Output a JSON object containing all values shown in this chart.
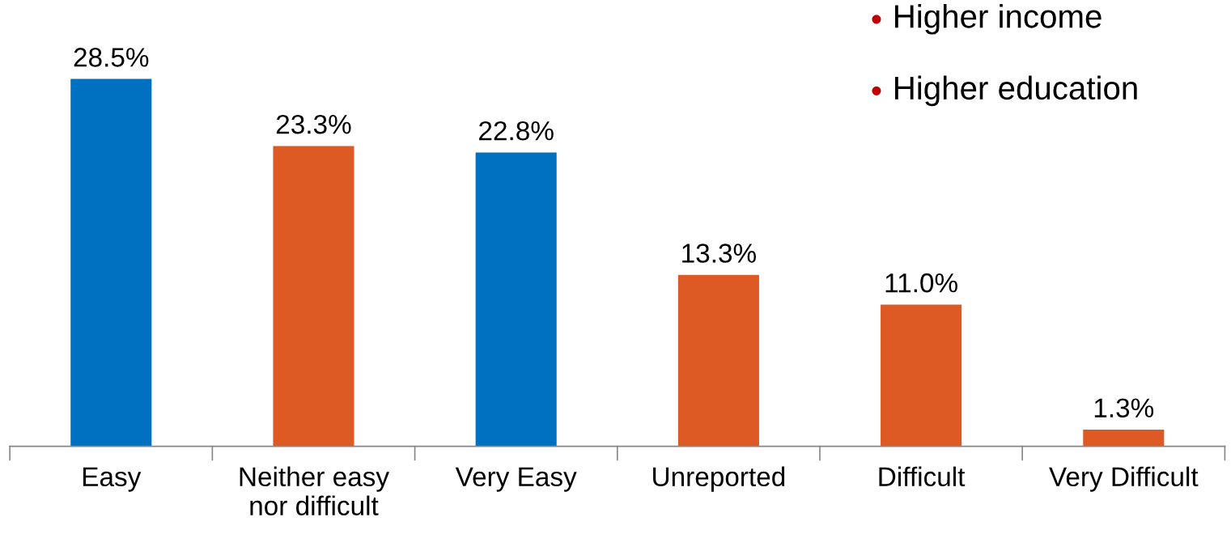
{
  "chart_data": {
    "type": "bar",
    "categories": [
      "Easy",
      "Neither easy\nnor difficult",
      "Very Easy",
      "Unreported",
      "Difficult",
      "Very Difficult"
    ],
    "values": [
      28.5,
      23.3,
      22.8,
      13.3,
      11.0,
      1.3
    ],
    "colors": [
      "#0070c0",
      "#de5a24",
      "#0070c0",
      "#de5a24",
      "#de5a24",
      "#de5a24"
    ],
    "value_labels": [
      "28.5%",
      "23.3%",
      "22.8%",
      "13.3%",
      "11.0%",
      "1.3%"
    ],
    "annotations": [
      "Higher income",
      "Higher education"
    ],
    "grid": false,
    "legend": false
  }
}
